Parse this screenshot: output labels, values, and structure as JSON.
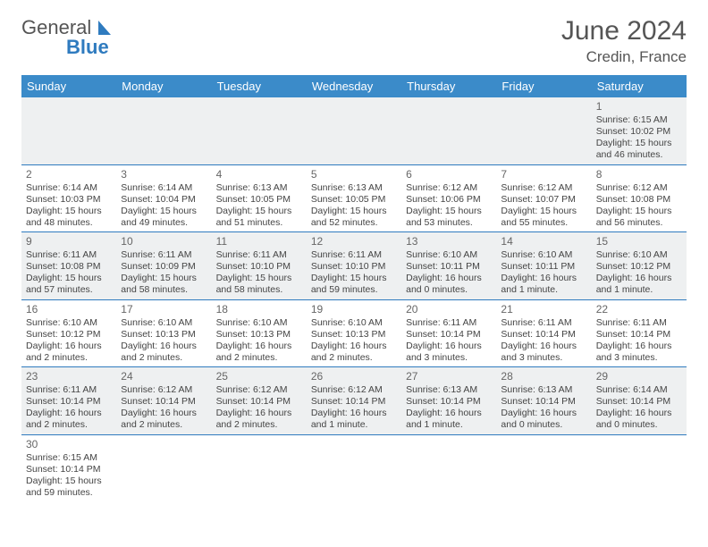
{
  "brand": {
    "general": "General",
    "blue": "Blue"
  },
  "title": "June 2024",
  "location": "Credin, France",
  "colors": {
    "header_bg": "#3b8bc9",
    "header_fg": "#ffffff",
    "row_odd_bg": "#eef0f1",
    "row_even_bg": "#ffffff",
    "cell_border": "#2f7bbf",
    "text": "#444444",
    "title_text": "#555555",
    "logo_blue": "#2f7bbf"
  },
  "columns": [
    "Sunday",
    "Monday",
    "Tuesday",
    "Wednesday",
    "Thursday",
    "Friday",
    "Saturday"
  ],
  "weeks": [
    [
      null,
      null,
      null,
      null,
      null,
      null,
      {
        "d": "1",
        "sr": "Sunrise: 6:15 AM",
        "ss": "Sunset: 10:02 PM",
        "dl": "Daylight: 15 hours and 46 minutes."
      }
    ],
    [
      {
        "d": "2",
        "sr": "Sunrise: 6:14 AM",
        "ss": "Sunset: 10:03 PM",
        "dl": "Daylight: 15 hours and 48 minutes."
      },
      {
        "d": "3",
        "sr": "Sunrise: 6:14 AM",
        "ss": "Sunset: 10:04 PM",
        "dl": "Daylight: 15 hours and 49 minutes."
      },
      {
        "d": "4",
        "sr": "Sunrise: 6:13 AM",
        "ss": "Sunset: 10:05 PM",
        "dl": "Daylight: 15 hours and 51 minutes."
      },
      {
        "d": "5",
        "sr": "Sunrise: 6:13 AM",
        "ss": "Sunset: 10:05 PM",
        "dl": "Daylight: 15 hours and 52 minutes."
      },
      {
        "d": "6",
        "sr": "Sunrise: 6:12 AM",
        "ss": "Sunset: 10:06 PM",
        "dl": "Daylight: 15 hours and 53 minutes."
      },
      {
        "d": "7",
        "sr": "Sunrise: 6:12 AM",
        "ss": "Sunset: 10:07 PM",
        "dl": "Daylight: 15 hours and 55 minutes."
      },
      {
        "d": "8",
        "sr": "Sunrise: 6:12 AM",
        "ss": "Sunset: 10:08 PM",
        "dl": "Daylight: 15 hours and 56 minutes."
      }
    ],
    [
      {
        "d": "9",
        "sr": "Sunrise: 6:11 AM",
        "ss": "Sunset: 10:08 PM",
        "dl": "Daylight: 15 hours and 57 minutes."
      },
      {
        "d": "10",
        "sr": "Sunrise: 6:11 AM",
        "ss": "Sunset: 10:09 PM",
        "dl": "Daylight: 15 hours and 58 minutes."
      },
      {
        "d": "11",
        "sr": "Sunrise: 6:11 AM",
        "ss": "Sunset: 10:10 PM",
        "dl": "Daylight: 15 hours and 58 minutes."
      },
      {
        "d": "12",
        "sr": "Sunrise: 6:11 AM",
        "ss": "Sunset: 10:10 PM",
        "dl": "Daylight: 15 hours and 59 minutes."
      },
      {
        "d": "13",
        "sr": "Sunrise: 6:10 AM",
        "ss": "Sunset: 10:11 PM",
        "dl": "Daylight: 16 hours and 0 minutes."
      },
      {
        "d": "14",
        "sr": "Sunrise: 6:10 AM",
        "ss": "Sunset: 10:11 PM",
        "dl": "Daylight: 16 hours and 1 minute."
      },
      {
        "d": "15",
        "sr": "Sunrise: 6:10 AM",
        "ss": "Sunset: 10:12 PM",
        "dl": "Daylight: 16 hours and 1 minute."
      }
    ],
    [
      {
        "d": "16",
        "sr": "Sunrise: 6:10 AM",
        "ss": "Sunset: 10:12 PM",
        "dl": "Daylight: 16 hours and 2 minutes."
      },
      {
        "d": "17",
        "sr": "Sunrise: 6:10 AM",
        "ss": "Sunset: 10:13 PM",
        "dl": "Daylight: 16 hours and 2 minutes."
      },
      {
        "d": "18",
        "sr": "Sunrise: 6:10 AM",
        "ss": "Sunset: 10:13 PM",
        "dl": "Daylight: 16 hours and 2 minutes."
      },
      {
        "d": "19",
        "sr": "Sunrise: 6:10 AM",
        "ss": "Sunset: 10:13 PM",
        "dl": "Daylight: 16 hours and 2 minutes."
      },
      {
        "d": "20",
        "sr": "Sunrise: 6:11 AM",
        "ss": "Sunset: 10:14 PM",
        "dl": "Daylight: 16 hours and 3 minutes."
      },
      {
        "d": "21",
        "sr": "Sunrise: 6:11 AM",
        "ss": "Sunset: 10:14 PM",
        "dl": "Daylight: 16 hours and 3 minutes."
      },
      {
        "d": "22",
        "sr": "Sunrise: 6:11 AM",
        "ss": "Sunset: 10:14 PM",
        "dl": "Daylight: 16 hours and 3 minutes."
      }
    ],
    [
      {
        "d": "23",
        "sr": "Sunrise: 6:11 AM",
        "ss": "Sunset: 10:14 PM",
        "dl": "Daylight: 16 hours and 2 minutes."
      },
      {
        "d": "24",
        "sr": "Sunrise: 6:12 AM",
        "ss": "Sunset: 10:14 PM",
        "dl": "Daylight: 16 hours and 2 minutes."
      },
      {
        "d": "25",
        "sr": "Sunrise: 6:12 AM",
        "ss": "Sunset: 10:14 PM",
        "dl": "Daylight: 16 hours and 2 minutes."
      },
      {
        "d": "26",
        "sr": "Sunrise: 6:12 AM",
        "ss": "Sunset: 10:14 PM",
        "dl": "Daylight: 16 hours and 1 minute."
      },
      {
        "d": "27",
        "sr": "Sunrise: 6:13 AM",
        "ss": "Sunset: 10:14 PM",
        "dl": "Daylight: 16 hours and 1 minute."
      },
      {
        "d": "28",
        "sr": "Sunrise: 6:13 AM",
        "ss": "Sunset: 10:14 PM",
        "dl": "Daylight: 16 hours and 0 minutes."
      },
      {
        "d": "29",
        "sr": "Sunrise: 6:14 AM",
        "ss": "Sunset: 10:14 PM",
        "dl": "Daylight: 16 hours and 0 minutes."
      }
    ],
    [
      {
        "d": "30",
        "sr": "Sunrise: 6:15 AM",
        "ss": "Sunset: 10:14 PM",
        "dl": "Daylight: 15 hours and 59 minutes."
      },
      null,
      null,
      null,
      null,
      null,
      null
    ]
  ]
}
